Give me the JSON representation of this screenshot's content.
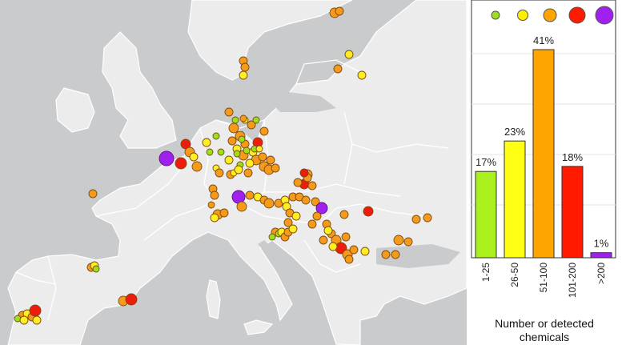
{
  "legend": {
    "colors": [
      "#9be01b",
      "#ffee00",
      "#ffa500",
      "#ff1a00",
      "#a020f0"
    ],
    "x_title_line1": "Number or detected",
    "x_title_line2": "chemicals"
  },
  "chart_data": {
    "type": "bar",
    "categories": [
      "1-25",
      "26-50",
      "51-100",
      "101-200",
      ">200"
    ],
    "values": [
      17,
      23,
      41,
      18,
      1
    ],
    "labels": [
      "17%",
      "23%",
      "41%",
      "18%",
      "1%"
    ],
    "colors": [
      "#aaf01e",
      "#ffff14",
      "#ffa500",
      "#ff1a00",
      "#a020f0"
    ],
    "ylim": [
      0,
      45
    ],
    "grid": true,
    "xlabel": "Number or detected chemicals"
  },
  "map_sites": {
    "colors": {
      "green": "#9be01b",
      "yellow": "#ffee22",
      "orange": "#f59a1a",
      "red": "#ee1c0c",
      "purple": "#a020f0"
    }
  }
}
